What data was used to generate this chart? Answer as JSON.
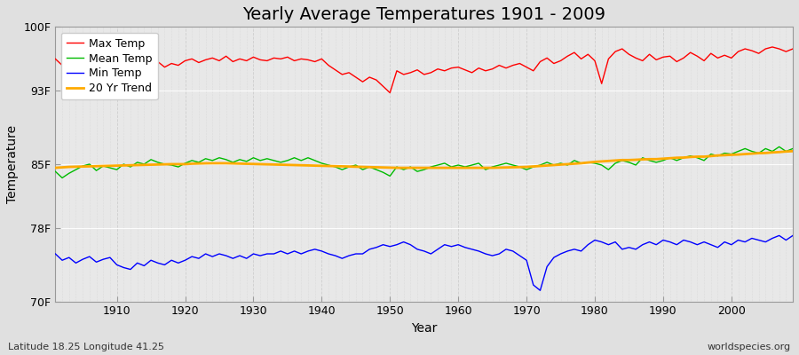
{
  "title": "Yearly Average Temperatures 1901 - 2009",
  "xlabel": "Year",
  "ylabel": "Temperature",
  "footnote_left": "Latitude 18.25 Longitude 41.25",
  "footnote_right": "worldspecies.org",
  "years": [
    1901,
    1902,
    1903,
    1904,
    1905,
    1906,
    1907,
    1908,
    1909,
    1910,
    1911,
    1912,
    1913,
    1914,
    1915,
    1916,
    1917,
    1918,
    1919,
    1920,
    1921,
    1922,
    1923,
    1924,
    1925,
    1926,
    1927,
    1928,
    1929,
    1930,
    1931,
    1932,
    1933,
    1934,
    1935,
    1936,
    1937,
    1938,
    1939,
    1940,
    1941,
    1942,
    1943,
    1944,
    1945,
    1946,
    1947,
    1948,
    1949,
    1950,
    1951,
    1952,
    1953,
    1954,
    1955,
    1956,
    1957,
    1958,
    1959,
    1960,
    1961,
    1962,
    1963,
    1964,
    1965,
    1966,
    1967,
    1968,
    1969,
    1970,
    1971,
    1972,
    1973,
    1974,
    1975,
    1976,
    1977,
    1978,
    1979,
    1980,
    1981,
    1982,
    1983,
    1984,
    1985,
    1986,
    1987,
    1988,
    1989,
    1990,
    1991,
    1992,
    1993,
    1994,
    1995,
    1996,
    1997,
    1998,
    1999,
    2000,
    2001,
    2002,
    2003,
    2004,
    2005,
    2006,
    2007,
    2008,
    2009
  ],
  "max_temp": [
    96.5,
    95.8,
    96.2,
    95.5,
    96.3,
    96.0,
    95.6,
    96.1,
    95.8,
    95.4,
    95.9,
    95.2,
    95.7,
    96.0,
    95.8,
    96.2,
    95.6,
    96.0,
    95.8,
    96.3,
    96.5,
    96.1,
    96.4,
    96.6,
    96.3,
    96.8,
    96.2,
    96.5,
    96.3,
    96.7,
    96.4,
    96.3,
    96.6,
    96.5,
    96.7,
    96.3,
    96.5,
    96.4,
    96.2,
    96.5,
    95.8,
    95.3,
    94.8,
    95.0,
    94.5,
    94.0,
    94.5,
    94.2,
    93.5,
    92.8,
    95.2,
    94.8,
    95.0,
    95.3,
    94.8,
    95.0,
    95.4,
    95.2,
    95.5,
    95.6,
    95.3,
    95.0,
    95.5,
    95.2,
    95.4,
    95.8,
    95.5,
    95.8,
    96.0,
    95.6,
    95.2,
    96.2,
    96.6,
    96.0,
    96.3,
    96.8,
    97.2,
    96.5,
    97.0,
    96.3,
    93.8,
    96.5,
    97.3,
    97.6,
    97.0,
    96.6,
    96.3,
    97.0,
    96.4,
    96.7,
    96.8,
    96.2,
    96.6,
    97.2,
    96.8,
    96.3,
    97.1,
    96.6,
    96.9,
    96.6,
    97.3,
    97.6,
    97.4,
    97.1,
    97.6,
    97.8,
    97.6,
    97.3,
    97.6
  ],
  "mean_temp": [
    84.2,
    83.5,
    84.0,
    84.4,
    84.8,
    85.0,
    84.3,
    84.8,
    84.6,
    84.4,
    85.0,
    84.7,
    85.2,
    85.0,
    85.5,
    85.2,
    85.0,
    84.9,
    84.7,
    85.1,
    85.4,
    85.2,
    85.6,
    85.4,
    85.7,
    85.5,
    85.2,
    85.5,
    85.3,
    85.7,
    85.4,
    85.6,
    85.4,
    85.2,
    85.4,
    85.7,
    85.4,
    85.7,
    85.4,
    85.1,
    84.9,
    84.7,
    84.4,
    84.7,
    84.9,
    84.4,
    84.7,
    84.4,
    84.1,
    83.7,
    84.7,
    84.4,
    84.7,
    84.2,
    84.4,
    84.7,
    84.9,
    85.1,
    84.7,
    84.9,
    84.7,
    84.9,
    85.1,
    84.4,
    84.7,
    84.9,
    85.1,
    84.9,
    84.7,
    84.4,
    84.7,
    84.9,
    85.2,
    84.9,
    85.1,
    84.9,
    85.4,
    85.1,
    85.2,
    85.1,
    84.9,
    84.4,
    85.1,
    85.4,
    85.2,
    84.9,
    85.7,
    85.4,
    85.2,
    85.4,
    85.7,
    85.4,
    85.7,
    85.9,
    85.7,
    85.4,
    86.1,
    85.9,
    86.2,
    86.1,
    86.4,
    86.7,
    86.4,
    86.2,
    86.7,
    86.4,
    86.9,
    86.4,
    86.7
  ],
  "min_temp": [
    75.2,
    74.5,
    74.8,
    74.2,
    74.6,
    74.9,
    74.3,
    74.6,
    74.8,
    74.0,
    73.7,
    73.5,
    74.2,
    73.9,
    74.5,
    74.2,
    74.0,
    74.5,
    74.2,
    74.5,
    74.9,
    74.7,
    75.2,
    74.9,
    75.2,
    75.0,
    74.7,
    75.0,
    74.7,
    75.2,
    75.0,
    75.2,
    75.2,
    75.5,
    75.2,
    75.5,
    75.2,
    75.5,
    75.7,
    75.5,
    75.2,
    75.0,
    74.7,
    75.0,
    75.2,
    75.2,
    75.7,
    75.9,
    76.2,
    76.0,
    76.2,
    76.5,
    76.2,
    75.7,
    75.5,
    75.2,
    75.7,
    76.2,
    76.0,
    76.2,
    75.9,
    75.7,
    75.5,
    75.2,
    75.0,
    75.2,
    75.7,
    75.5,
    75.0,
    74.5,
    71.8,
    71.2,
    73.8,
    74.8,
    75.2,
    75.5,
    75.7,
    75.5,
    76.2,
    76.7,
    76.5,
    76.2,
    76.5,
    75.7,
    75.9,
    75.7,
    76.2,
    76.5,
    76.2,
    76.7,
    76.5,
    76.2,
    76.7,
    76.5,
    76.2,
    76.5,
    76.2,
    75.9,
    76.5,
    76.2,
    76.7,
    76.5,
    76.9,
    76.7,
    76.5,
    76.9,
    77.2,
    76.7,
    77.2
  ],
  "trend": [
    84.6,
    84.65,
    84.7,
    84.72,
    84.74,
    84.76,
    84.78,
    84.8,
    84.82,
    84.84,
    84.86,
    84.88,
    84.9,
    84.92,
    84.94,
    84.96,
    84.98,
    85.0,
    85.0,
    85.0,
    85.05,
    85.07,
    85.09,
    85.1,
    85.1,
    85.1,
    85.08,
    85.06,
    85.04,
    85.02,
    85.0,
    84.98,
    84.96,
    84.94,
    84.92,
    84.9,
    84.88,
    84.86,
    84.84,
    84.82,
    84.8,
    84.78,
    84.76,
    84.74,
    84.72,
    84.7,
    84.68,
    84.66,
    84.64,
    84.62,
    84.6,
    84.6,
    84.6,
    84.6,
    84.6,
    84.6,
    84.6,
    84.6,
    84.6,
    84.6,
    84.6,
    84.6,
    84.6,
    84.6,
    84.6,
    84.62,
    84.64,
    84.66,
    84.68,
    84.7,
    84.75,
    84.8,
    84.85,
    84.9,
    84.95,
    85.0,
    85.05,
    85.1,
    85.18,
    85.25,
    85.3,
    85.35,
    85.4,
    85.45,
    85.45,
    85.48,
    85.52,
    85.55,
    85.55,
    85.6,
    85.65,
    85.7,
    85.72,
    85.78,
    85.82,
    85.82,
    85.88,
    85.95,
    85.98,
    86.02,
    86.05,
    86.1,
    86.15,
    86.2,
    86.22,
    86.28,
    86.32,
    86.38,
    86.42
  ],
  "max_color": "#ff0000",
  "mean_color": "#00bb00",
  "min_color": "#0000ff",
  "trend_color": "#ffaa00",
  "bg_color": "#e0e0e0",
  "plot_bg_color": "#e8e8e8",
  "grid_color": "#c8c8c8",
  "ytick_labels": [
    "70F",
    "78F",
    "85F",
    "93F",
    "100F"
  ],
  "ytick_vals": [
    70,
    78,
    85,
    93,
    100
  ],
  "ylim": [
    70,
    100
  ],
  "xlim": [
    1901,
    2009
  ],
  "xticks": [
    1910,
    1920,
    1930,
    1940,
    1950,
    1960,
    1970,
    1980,
    1990,
    2000
  ],
  "title_fontsize": 14,
  "axis_fontsize": 10,
  "tick_fontsize": 9
}
